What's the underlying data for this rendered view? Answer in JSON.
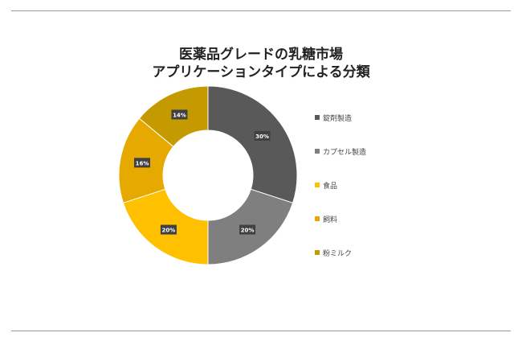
{
  "title_line1": "医薬品グレードの乳糖市場",
  "title_line2": "アプリケーションタイプによる分類",
  "chart_data": {
    "type": "pie",
    "donut": true,
    "title": "医薬品グレードの乳糖市場 アプリケーションタイプによる分類",
    "categories": [
      "錠剤製造",
      "カプセル製造",
      "食品",
      "飼料",
      "粉ミルク"
    ],
    "values": [
      30,
      20,
      20,
      16,
      14
    ],
    "labels": [
      "30%",
      "20%",
      "20%",
      "16%",
      "14%"
    ],
    "colors": [
      "#595959",
      "#7f7f7f",
      "#ffc000",
      "#e6a900",
      "#c49a00"
    ],
    "legend_position": "right"
  }
}
